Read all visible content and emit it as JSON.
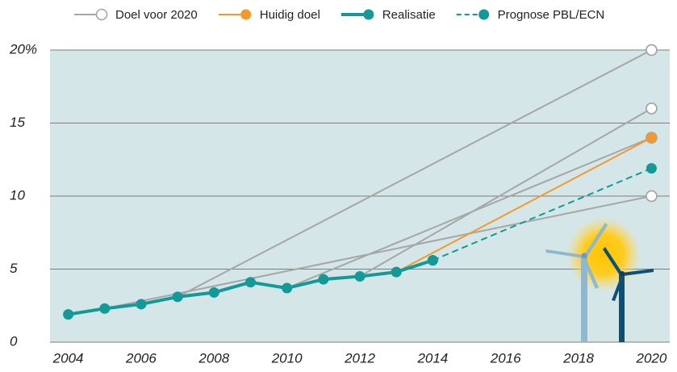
{
  "chart_data": {
    "type": "line",
    "xlim": [
      2003.5,
      2020.5
    ],
    "xticks": [
      2004,
      2006,
      2008,
      2010,
      2012,
      2014,
      2016,
      2018,
      2020
    ],
    "ylim": [
      0,
      20
    ],
    "yticks": [
      0,
      5,
      10,
      15,
      {
        "value": 20,
        "label": "20%"
      }
    ],
    "grid": true,
    "series": [
      {
        "name": "Doel voor 2020",
        "color": "#a6a6a6",
        "open_markers": true,
        "dashed": false,
        "emphasis": false,
        "segments": [
          {
            "x": [
              2007,
              2020
            ],
            "values": [
              3.1,
              20
            ]
          },
          {
            "x": [
              2012,
              2020
            ],
            "values": [
              4.5,
              16
            ]
          },
          {
            "x": [
              2010,
              2020
            ],
            "values": [
              3.7,
              14
            ]
          },
          {
            "x": [
              2005,
              2020
            ],
            "values": [
              2.3,
              10
            ]
          }
        ]
      },
      {
        "name": "Huidig doel",
        "color": "#f39a2e",
        "open_markers": false,
        "dashed": false,
        "emphasis": false,
        "segments": [
          {
            "x": [
              2013,
              2020
            ],
            "values": [
              4.8,
              14
            ]
          }
        ]
      },
      {
        "name": "Realisatie",
        "color": "#139a98",
        "open_markers": false,
        "dashed": false,
        "emphasis": true,
        "segments": [
          {
            "x": [
              2004,
              2005,
              2006,
              2007,
              2008,
              2009,
              2010,
              2011,
              2012,
              2013,
              2014
            ],
            "values": [
              1.9,
              2.3,
              2.6,
              3.1,
              3.4,
              4.1,
              3.7,
              4.3,
              4.5,
              4.8,
              5.6
            ]
          }
        ]
      },
      {
        "name": "Prognose PBL/ECN",
        "color": "#139a98",
        "open_markers": false,
        "dashed": true,
        "emphasis": false,
        "segments": [
          {
            "x": [
              2014,
              2020
            ],
            "values": [
              5.6,
              11.9
            ]
          }
        ]
      }
    ]
  }
}
